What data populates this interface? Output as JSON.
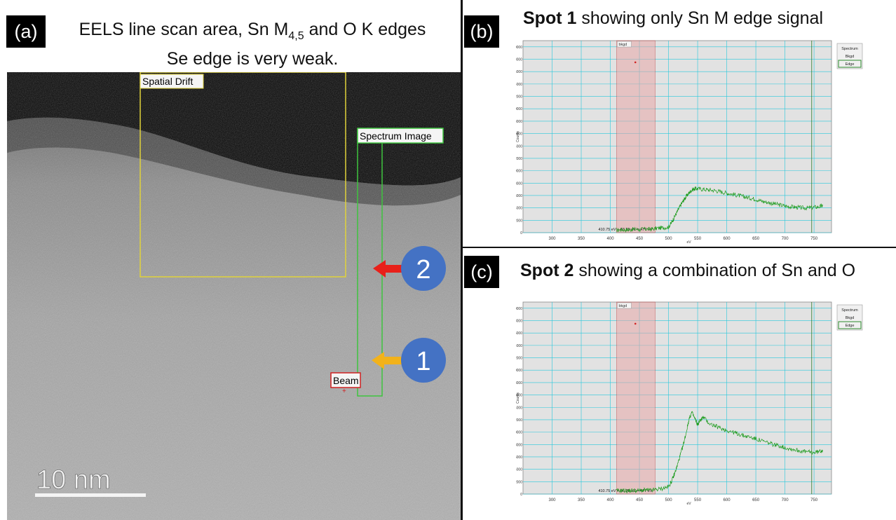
{
  "panel_a": {
    "tag": "(a)",
    "title_line1_prefix": "EELS line scan area, Sn M",
    "title_line1_sub": "4,5",
    "title_line1_suffix": " and O K edges",
    "title_line2": "Se edge is very weak.",
    "box_spatial_drift": "Spatial Drift",
    "box_spectrum_image": "Spectrum Image",
    "box_beam": "Beam",
    "marker_1": "1",
    "marker_2": "2",
    "scalebar": "10  nm"
  },
  "panel_b": {
    "tag": "(b)",
    "title_bold": "Spot 1",
    "title_rest": " showing only Sn M edge signal"
  },
  "panel_c": {
    "tag": "(c)",
    "title_bold": "Spot 2",
    "title_rest": " showing a combination of Sn and O"
  },
  "colors": {
    "plot_bg": "#e2e2e2",
    "grid": "#25c8dc",
    "signal": "#1a9a1a",
    "bkgd_window": "#e8a8a8",
    "drift_box": "#e0d23a",
    "spectrum_box": "#3ec43e",
    "arrow_red": "#e8201a",
    "arrow_yellow": "#f2b21b",
    "marker_blue": "#4472c4"
  },
  "chart_data": [
    {
      "type": "line",
      "panel": "b",
      "xlabel": "eV",
      "ylabel": "Counts",
      "xlim": [
        250,
        780
      ],
      "ylim": [
        0,
        31000
      ],
      "xticks": [
        300,
        350,
        400,
        450,
        500,
        550,
        600,
        650,
        700,
        750
      ],
      "yticks": [
        0,
        2000,
        4000,
        6000,
        8000,
        10000,
        12000,
        14000,
        16000,
        18000,
        20000,
        22000,
        24000,
        26000,
        28000,
        30000
      ],
      "legend": [
        "Spectrum",
        "Bkgd",
        "Edge"
      ],
      "legend_position": "top-right",
      "window_label": "bkgd",
      "window_ev": [
        410.75,
        477
      ],
      "window_text": "410.75 eV  +  66.25 eV  =  477 eV",
      "marker": {
        "x": 443,
        "y": 27500
      },
      "x": [
        410,
        420,
        430,
        440,
        450,
        460,
        470,
        480,
        490,
        500,
        505,
        510,
        515,
        520,
        525,
        530,
        535,
        540,
        545,
        550,
        560,
        570,
        580,
        590,
        600,
        610,
        620,
        630,
        640,
        650,
        660,
        670,
        680,
        690,
        700,
        710,
        720,
        730,
        740,
        750,
        760,
        765
      ],
      "series": [
        {
          "values": [
            400,
            500,
            450,
            550,
            500,
            600,
            550,
            700,
            800,
            900,
            1600,
            2500,
            3400,
            4300,
            5100,
            5800,
            6400,
            6900,
            7100,
            7100,
            7000,
            6900,
            6800,
            6600,
            6400,
            6200,
            6000,
            5800,
            5600,
            5400,
            5100,
            4900,
            4700,
            4500,
            4300,
            4200,
            4100,
            4000,
            4000,
            4100,
            4200,
            4400
          ]
        }
      ]
    },
    {
      "type": "line",
      "panel": "c",
      "xlabel": "eV",
      "ylabel": "Counts",
      "xlim": [
        250,
        780
      ],
      "ylim": [
        0,
        31000
      ],
      "xticks": [
        300,
        350,
        400,
        450,
        500,
        550,
        600,
        650,
        700,
        750
      ],
      "yticks": [
        0,
        2000,
        4000,
        6000,
        8000,
        10000,
        12000,
        14000,
        16000,
        18000,
        20000,
        22000,
        24000,
        26000,
        28000,
        30000
      ],
      "legend": [
        "Spectrum",
        "Bkgd",
        "Edge"
      ],
      "legend_position": "top-right",
      "window_label": "bkgd",
      "window_ev": [
        410.75,
        477
      ],
      "window_text": "410.75 eV  +  66.25 eV  =  477 eV",
      "marker": {
        "x": 443,
        "y": 27500
      },
      "x": [
        410,
        420,
        430,
        440,
        450,
        460,
        470,
        480,
        490,
        500,
        505,
        510,
        515,
        520,
        525,
        530,
        535,
        540,
        545,
        550,
        555,
        560,
        570,
        580,
        590,
        600,
        610,
        620,
        630,
        640,
        650,
        660,
        670,
        680,
        690,
        700,
        710,
        720,
        730,
        740,
        750,
        760,
        765
      ],
      "series": [
        {
          "values": [
            500,
            600,
            500,
            600,
            550,
            650,
            600,
            750,
            900,
            1200,
            2000,
            3200,
            4600,
            6200,
            7800,
            9800,
            12000,
            13200,
            12200,
            11200,
            12000,
            12400,
            11400,
            11000,
            10600,
            10300,
            10000,
            9700,
            9400,
            9200,
            8900,
            8600,
            8300,
            8000,
            7800,
            7500,
            7300,
            7100,
            6900,
            6800,
            6700,
            6900,
            7100
          ]
        }
      ]
    }
  ]
}
